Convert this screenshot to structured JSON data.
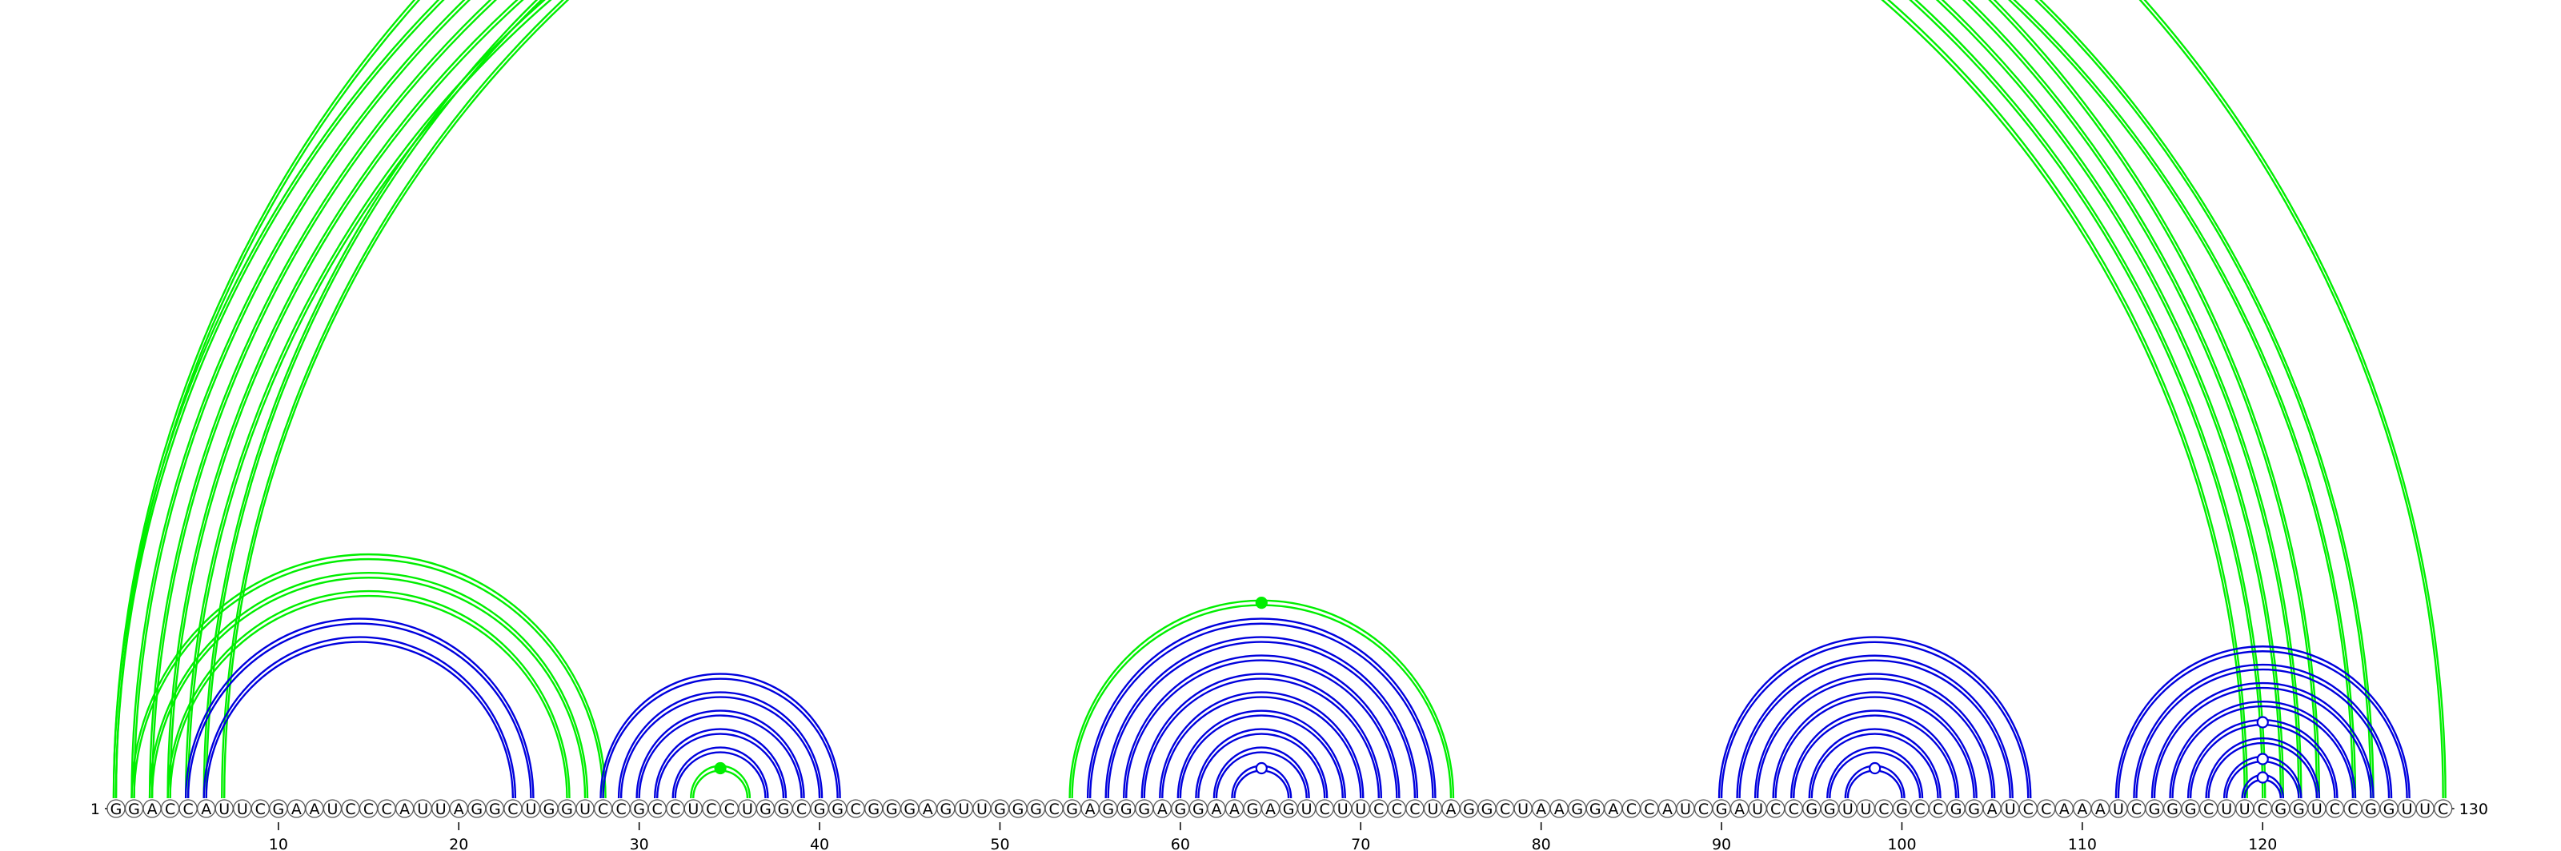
{
  "diagram": {
    "type": "rna-arc-diagram",
    "sequence": "GGACCAUUCGAAUCCCAUUAGGCUGGUCCGCCUCCUGGCGGCGGGAGUUGGGCGAGGGAGGAAGAGUCUUCCCUAGGCUAAGGACCAUCGAUCCGGUUCGCCGGAUCCAAAUCGGGCUUCGGUCCGGUUC",
    "start_label": "1",
    "end_label": "130",
    "tick_labels": [
      "10",
      "20",
      "30",
      "40",
      "50",
      "60",
      "70",
      "80",
      "90",
      "100",
      "110",
      "120"
    ],
    "colors": {
      "background": "#ffffff",
      "nucleotide_fill": "#ffffff",
      "nucleotide_stroke": "#555555",
      "text": "#000000",
      "green": "#00ee00",
      "blue": "#0000dd"
    },
    "arc_groups": [
      {
        "color": "green",
        "pairs": [
          [
            1,
            123
          ],
          [
            2,
            122
          ],
          [
            3,
            121
          ],
          [
            4,
            120
          ],
          [
            5,
            119
          ]
        ],
        "double": true,
        "marker": "none"
      },
      {
        "color": "green",
        "pairs": [
          [
            1,
            130
          ]
        ],
        "double": true,
        "marker": "open"
      },
      {
        "color": "green",
        "pairs": [
          [
            6,
            126
          ],
          [
            7,
            125
          ]
        ],
        "double": true,
        "marker": "none"
      },
      {
        "color": "green",
        "pairs": [
          [
            2,
            28
          ],
          [
            3,
            27
          ],
          [
            4,
            26
          ]
        ],
        "double": true,
        "marker": "none"
      },
      {
        "color": "blue",
        "pairs": [
          [
            5,
            24
          ],
          [
            6,
            23
          ]
        ],
        "double": true,
        "marker": "none"
      },
      {
        "color": "blue",
        "pairs": [
          [
            28,
            41
          ],
          [
            29,
            40
          ],
          [
            30,
            39
          ],
          [
            31,
            38
          ],
          [
            32,
            37
          ]
        ],
        "double": true,
        "marker": "none"
      },
      {
        "color": "green",
        "pairs": [
          [
            33,
            36
          ]
        ],
        "double": true,
        "marker": "filled"
      },
      {
        "color": "green",
        "pairs": [
          [
            54,
            75
          ]
        ],
        "double": true,
        "marker": "filled"
      },
      {
        "color": "blue",
        "pairs": [
          [
            55,
            74
          ],
          [
            56,
            73
          ],
          [
            57,
            72
          ],
          [
            58,
            71
          ],
          [
            59,
            70
          ],
          [
            60,
            69
          ],
          [
            61,
            68
          ],
          [
            62,
            67
          ]
        ],
        "double": true,
        "marker": "none"
      },
      {
        "color": "blue",
        "pairs": [
          [
            63,
            66
          ]
        ],
        "double": true,
        "marker": "open"
      },
      {
        "color": "blue",
        "pairs": [
          [
            90,
            107
          ],
          [
            91,
            106
          ],
          [
            92,
            105
          ],
          [
            93,
            104
          ],
          [
            94,
            103
          ],
          [
            95,
            102
          ],
          [
            96,
            101
          ]
        ],
        "double": true,
        "marker": "none"
      },
      {
        "color": "blue",
        "pairs": [
          [
            97,
            100
          ]
        ],
        "double": true,
        "marker": "open"
      },
      {
        "color": "blue",
        "pairs": [
          [
            112,
            128
          ],
          [
            113,
            127
          ],
          [
            114,
            126
          ],
          [
            115,
            125
          ]
        ],
        "double": true,
        "marker": "none"
      },
      {
        "color": "blue",
        "pairs": [
          [
            116,
            124
          ]
        ],
        "double": true,
        "marker": "open"
      },
      {
        "color": "blue",
        "pairs": [
          [
            117,
            123
          ]
        ],
        "double": true,
        "marker": "none"
      },
      {
        "color": "blue",
        "pairs": [
          [
            118,
            122
          ]
        ],
        "double": true,
        "marker": "open"
      },
      {
        "color": "blue",
        "pairs": [
          [
            119,
            121
          ]
        ],
        "double": true,
        "marker": "open"
      }
    ]
  }
}
